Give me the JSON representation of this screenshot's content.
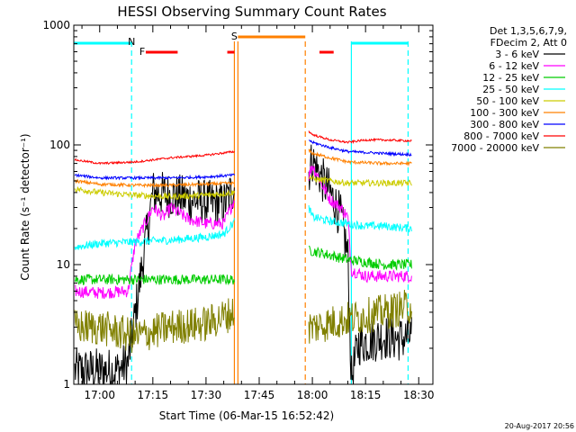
{
  "chart_data": {
    "type": "line",
    "title": "HESSI Observing Summary Count Rates",
    "xlabel": "Start Time (06-Mar-15 16:52:42)",
    "ylabel": "Count Rate (s⁻¹ detector⁻¹)",
    "y_scale": "log",
    "ylim": [
      1,
      1000
    ],
    "xlim_minutes_after_16_52_42": [
      0,
      101.3
    ],
    "x_tick_labels": [
      "17:00",
      "17:15",
      "17:30",
      "17:45",
      "18:00",
      "18:15",
      "18:30"
    ],
    "x_tick_times": [
      "17:00",
      "17:15",
      "17:30",
      "17:45",
      "18:00",
      "18:15",
      "18:30"
    ],
    "y_tick_labels": [
      "1",
      "10",
      "100",
      "1000"
    ],
    "y_tick_values": [
      1,
      10,
      100,
      1000
    ],
    "legend_header": [
      "Det 1,3,5,6,7,9,",
      "FDecim 2, Att 0"
    ],
    "legend_position": "right, outside plot",
    "footer": "20-Aug-2017 20:56",
    "flag_markers": [
      {
        "label": "N",
        "color": "#00ffff",
        "time": "17:09"
      },
      {
        "label": "F",
        "color": "#ff0000",
        "time": "17:12"
      },
      {
        "label": "S",
        "color": "#ff8000",
        "time": "17:38"
      }
    ],
    "flag_bars": [
      {
        "name": "cyan-top-left",
        "color": "#00ffff",
        "from": "16:52:42",
        "to": "17:09"
      },
      {
        "name": "red-flare-1",
        "color": "#ff0000",
        "from": "17:13",
        "to": "17:22"
      },
      {
        "name": "red-flare-2",
        "color": "#ff0000",
        "from": "17:36",
        "to": "17:38"
      },
      {
        "name": "orange-saa",
        "color": "#ff8000",
        "from": "17:39",
        "to": "17:58"
      },
      {
        "name": "red-flare-3",
        "color": "#ff0000",
        "from": "18:02",
        "to": "18:06"
      },
      {
        "name": "cyan-top-right",
        "color": "#00ffff",
        "from": "18:11",
        "to": "18:27"
      }
    ],
    "vertical_lines": [
      {
        "time": "17:09",
        "color": "#00ffff",
        "style": "dashed"
      },
      {
        "time": "17:38",
        "color": "#ff8000",
        "style": "solid"
      },
      {
        "time": "17:39",
        "color": "#ff8000",
        "style": "solid"
      },
      {
        "time": "17:58",
        "color": "#ff8000",
        "style": "dashed"
      },
      {
        "time": "18:11",
        "color": "#00ffff",
        "style": "solid"
      },
      {
        "time": "18:27",
        "color": "#00ffff",
        "style": "dashed"
      }
    ],
    "series": [
      {
        "name": "3 - 6 keV",
        "color": "#000000",
        "seg1": [
          [
            16.53,
            1.3
          ],
          [
            17.05,
            1.3
          ],
          [
            17.08,
            1.5
          ],
          [
            17.15,
            40
          ],
          [
            17.2,
            38
          ],
          [
            17.3,
            33
          ],
          [
            17.35,
            32
          ],
          [
            17.38,
            45
          ]
        ],
        "seg2": [
          [
            17.59,
            60
          ],
          [
            18.0,
            75
          ],
          [
            18.03,
            50
          ],
          [
            18.05,
            40
          ],
          [
            18.08,
            25
          ],
          [
            18.1,
            12
          ],
          [
            18.11,
            1.1
          ],
          [
            18.13,
            2.2
          ],
          [
            18.2,
            2.5
          ],
          [
            18.25,
            2.4
          ],
          [
            18.28,
            2.5
          ]
        ],
        "noise": 0.45
      },
      {
        "name": "6 - 12 keV",
        "color": "#ff00ff",
        "seg1": [
          [
            16.53,
            6.0
          ],
          [
            17.0,
            5.8
          ],
          [
            17.08,
            6.0
          ],
          [
            17.1,
            15
          ],
          [
            17.15,
            30
          ],
          [
            17.18,
            25
          ],
          [
            17.2,
            30
          ],
          [
            17.25,
            24
          ],
          [
            17.3,
            22
          ],
          [
            17.35,
            22
          ],
          [
            17.38,
            35
          ]
        ],
        "seg2": [
          [
            17.59,
            55
          ],
          [
            18.0,
            68
          ],
          [
            18.03,
            45
          ],
          [
            18.05,
            35
          ],
          [
            18.08,
            30
          ],
          [
            18.1,
            25
          ],
          [
            18.11,
            9
          ],
          [
            18.15,
            8
          ],
          [
            18.2,
            8
          ],
          [
            18.25,
            8
          ],
          [
            18.28,
            8
          ]
        ],
        "noise": 0.12
      },
      {
        "name": "12 - 25 keV",
        "color": "#00cc00",
        "seg1": [
          [
            16.53,
            7.5
          ],
          [
            17.0,
            7.5
          ],
          [
            17.1,
            7.5
          ],
          [
            17.2,
            7.5
          ],
          [
            17.3,
            7.5
          ],
          [
            17.38,
            7.5
          ]
        ],
        "seg2": [
          [
            17.59,
            13
          ],
          [
            18.0,
            13
          ],
          [
            18.05,
            12
          ],
          [
            18.1,
            11
          ],
          [
            18.15,
            10.5
          ],
          [
            18.2,
            10
          ],
          [
            18.28,
            10
          ]
        ],
        "noise": 0.1
      },
      {
        "name": "25 - 50 keV",
        "color": "#00ffff",
        "seg1": [
          [
            16.53,
            14
          ],
          [
            17.0,
            15
          ],
          [
            17.1,
            15.5
          ],
          [
            17.2,
            16
          ],
          [
            17.3,
            17
          ],
          [
            17.35,
            18
          ],
          [
            17.38,
            23
          ]
        ],
        "seg2": [
          [
            17.59,
            30
          ],
          [
            18.0,
            25
          ],
          [
            18.05,
            23
          ],
          [
            18.1,
            22
          ],
          [
            18.15,
            21
          ],
          [
            18.2,
            21
          ],
          [
            18.28,
            20
          ]
        ],
        "noise": 0.08
      },
      {
        "name": "50 - 100 keV",
        "color": "#cccc00",
        "seg1": [
          [
            16.53,
            43
          ],
          [
            17.0,
            40
          ],
          [
            17.1,
            38
          ],
          [
            17.2,
            37
          ],
          [
            17.3,
            38
          ],
          [
            17.38,
            40
          ]
        ],
        "seg2": [
          [
            17.59,
            55
          ],
          [
            18.0,
            52
          ],
          [
            18.05,
            50
          ],
          [
            18.1,
            48
          ],
          [
            18.2,
            48
          ],
          [
            18.28,
            48
          ]
        ],
        "noise": 0.06
      },
      {
        "name": "100 - 300 keV",
        "color": "#ff8000",
        "seg1": [
          [
            16.53,
            50
          ],
          [
            17.0,
            47
          ],
          [
            17.1,
            46
          ],
          [
            17.2,
            46
          ],
          [
            17.3,
            47
          ],
          [
            17.38,
            48
          ]
        ],
        "seg2": [
          [
            17.59,
            90
          ],
          [
            18.0,
            85
          ],
          [
            18.05,
            78
          ],
          [
            18.1,
            72
          ],
          [
            18.2,
            70
          ],
          [
            18.28,
            70
          ]
        ],
        "noise": 0.03
      },
      {
        "name": "300 - 800 keV",
        "color": "#0000ff",
        "seg1": [
          [
            16.53,
            56
          ],
          [
            17.0,
            53
          ],
          [
            17.1,
            53
          ],
          [
            17.2,
            53
          ],
          [
            17.3,
            54
          ],
          [
            17.38,
            56
          ]
        ],
        "seg2": [
          [
            17.59,
            110
          ],
          [
            18.0,
            105
          ],
          [
            18.05,
            95
          ],
          [
            18.1,
            88
          ],
          [
            18.2,
            85
          ],
          [
            18.28,
            83
          ]
        ],
        "noise": 0.025
      },
      {
        "name": "800 - 7000 keV",
        "color": "#ff0000",
        "seg1": [
          [
            16.53,
            75
          ],
          [
            17.0,
            70
          ],
          [
            17.1,
            72
          ],
          [
            17.2,
            78
          ],
          [
            17.3,
            82
          ],
          [
            17.38,
            88
          ]
        ],
        "seg2": [
          [
            17.59,
            130
          ],
          [
            18.0,
            122
          ],
          [
            18.05,
            110
          ],
          [
            18.1,
            105
          ],
          [
            18.15,
            110
          ],
          [
            18.2,
            110
          ],
          [
            18.28,
            108
          ]
        ],
        "noise": 0.02
      },
      {
        "name": "7000 - 20000 keV",
        "color": "#808000",
        "seg1": [
          [
            16.53,
            3
          ],
          [
            17.0,
            3
          ],
          [
            17.1,
            2.5
          ],
          [
            17.2,
            3
          ],
          [
            17.3,
            3.2
          ],
          [
            17.38,
            4
          ]
        ],
        "seg2": [
          [
            17.59,
            3
          ],
          [
            18.0,
            3
          ],
          [
            18.1,
            3.5
          ],
          [
            18.2,
            4
          ],
          [
            18.28,
            4.5
          ]
        ],
        "noise": 0.35
      }
    ]
  }
}
